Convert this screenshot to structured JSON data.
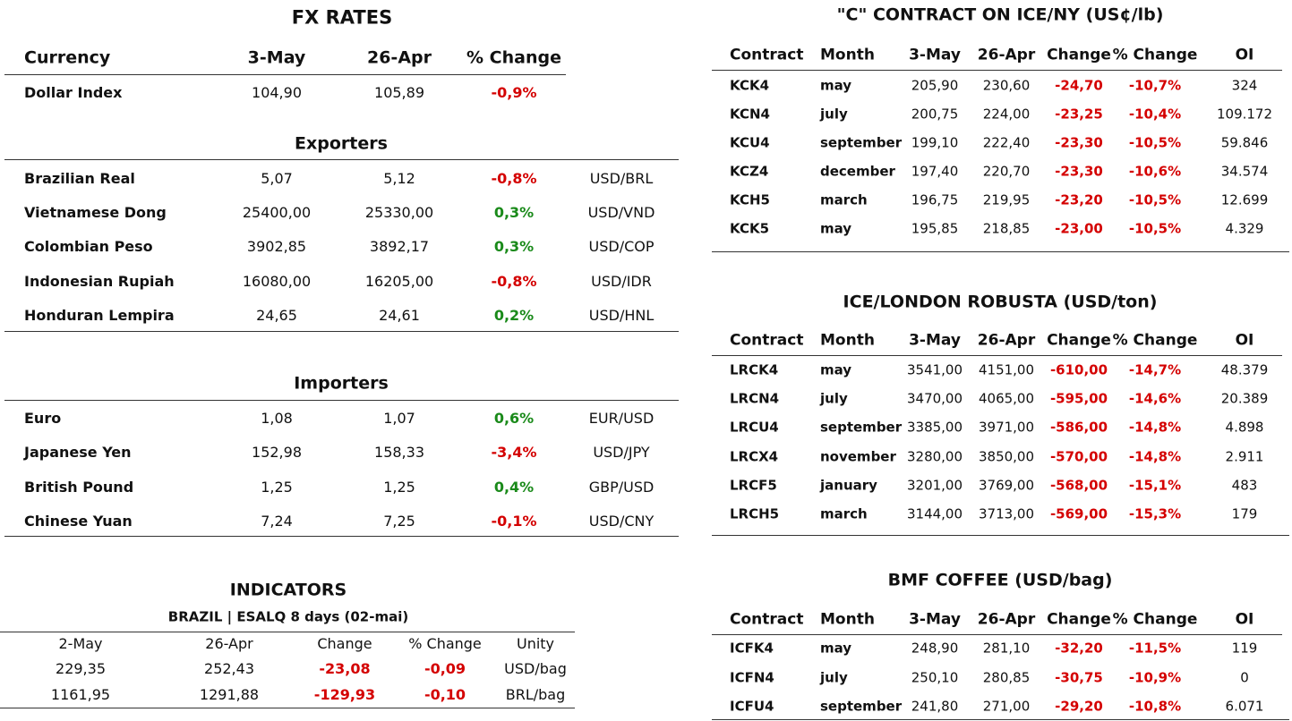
{
  "fx_rates": {
    "title": "FX RATES",
    "header": [
      "Currency",
      "3-May",
      "26-Apr",
      "% Change"
    ],
    "rows": [
      [
        "Dollar Index",
        "104,90",
        "105,89",
        "-0,9%"
      ]
    ],
    "exporters": {
      "title": "Exporters",
      "rows": [
        [
          "Brazilian Real",
          "5,07",
          "5,12",
          "-0,8%",
          "USD/BRL"
        ],
        [
          "Vietnamese Dong",
          "25400,00",
          "25330,00",
          "0,3%",
          "USD/VND"
        ],
        [
          "Colombian Peso",
          "3902,85",
          "3892,17",
          "0,3%",
          "USD/COP"
        ],
        [
          "Indonesian Rupiah",
          "16080,00",
          "16205,00",
          "-0,8%",
          "USD/IDR"
        ],
        [
          "Honduran Lempira",
          "24,65",
          "24,61",
          "0,2%",
          "USD/HNL"
        ]
      ]
    },
    "importers": {
      "title": "Importers",
      "rows": [
        [
          "Euro",
          "1,08",
          "1,07",
          "0,6%",
          "EUR/USD"
        ],
        [
          "Japanese Yen",
          "152,98",
          "158,33",
          "-3,4%",
          "USD/JPY"
        ],
        [
          "British Pound",
          "1,25",
          "1,25",
          "0,4%",
          "GBP/USD"
        ],
        [
          "Chinese Yuan",
          "7,24",
          "7,25",
          "-0,1%",
          "USD/CNY"
        ]
      ]
    }
  },
  "indicators": {
    "title": "INDICATORS",
    "subtitle": "BRAZIL | ESALQ 8 days (02-mai)",
    "header": [
      "2-May",
      "26-Apr",
      "Change",
      "% Change",
      "Unity"
    ],
    "rows": [
      [
        "229,35",
        "252,43",
        "-23,08",
        "-0,09",
        "USD/bag"
      ],
      [
        "1161,95",
        "1291,88",
        "-129,93",
        "-0,10",
        "BRL/bag"
      ]
    ]
  },
  "ice_ny": {
    "title": "\"C\" CONTRACT ON ICE/NY (US¢/lb)",
    "header": [
      "Contract",
      "Month",
      "3-May",
      "26-Apr",
      "Change",
      "% Change",
      "OI"
    ],
    "rows": [
      [
        "KCK4",
        "may",
        "205,90",
        "230,60",
        "-24,70",
        "-10,7%",
        "324"
      ],
      [
        "KCN4",
        "july",
        "200,75",
        "224,00",
        "-23,25",
        "-10,4%",
        "109.172"
      ],
      [
        "KCU4",
        "september",
        "199,10",
        "222,40",
        "-23,30",
        "-10,5%",
        "59.846"
      ],
      [
        "KCZ4",
        "december",
        "197,40",
        "220,70",
        "-23,30",
        "-10,6%",
        "34.574"
      ],
      [
        "KCH5",
        "march",
        "196,75",
        "219,95",
        "-23,20",
        "-10,5%",
        "12.699"
      ],
      [
        "KCK5",
        "may",
        "195,85",
        "218,85",
        "-23,00",
        "-10,5%",
        "4.329"
      ]
    ]
  },
  "ice_london": {
    "title": "ICE/LONDON ROBUSTA (USD/ton)",
    "header": [
      "Contract",
      "Month",
      "3-May",
      "26-Apr",
      "Change",
      "% Change",
      "OI"
    ],
    "rows": [
      [
        "LRCK4",
        "may",
        "3541,00",
        "4151,00",
        "-610,00",
        "-14,7%",
        "48.379"
      ],
      [
        "LRCN4",
        "july",
        "3470,00",
        "4065,00",
        "-595,00",
        "-14,6%",
        "20.389"
      ],
      [
        "LRCU4",
        "september",
        "3385,00",
        "3971,00",
        "-586,00",
        "-14,8%",
        "4.898"
      ],
      [
        "LRCX4",
        "november",
        "3280,00",
        "3850,00",
        "-570,00",
        "-14,8%",
        "2.911"
      ],
      [
        "LRCF5",
        "january",
        "3201,00",
        "3769,00",
        "-568,00",
        "-15,1%",
        "483"
      ],
      [
        "LRCH5",
        "march",
        "3144,00",
        "3713,00",
        "-569,00",
        "-15,3%",
        "179"
      ]
    ]
  },
  "bmf": {
    "title": "BMF COFFEE (USD/bag)",
    "header": [
      "Contract",
      "Month",
      "3-May",
      "26-Apr",
      "Change",
      "% Change",
      "OI"
    ],
    "rows": [
      [
        "ICFK4",
        "may",
        "248,90",
        "281,10",
        "-32,20",
        "-11,5%",
        "119"
      ],
      [
        "ICFN4",
        "july",
        "250,10",
        "280,85",
        "-30,75",
        "-10,9%",
        "0"
      ],
      [
        "ICFU4",
        "september",
        "241,80",
        "271,00",
        "-29,20",
        "-10,8%",
        "6.071"
      ]
    ]
  }
}
